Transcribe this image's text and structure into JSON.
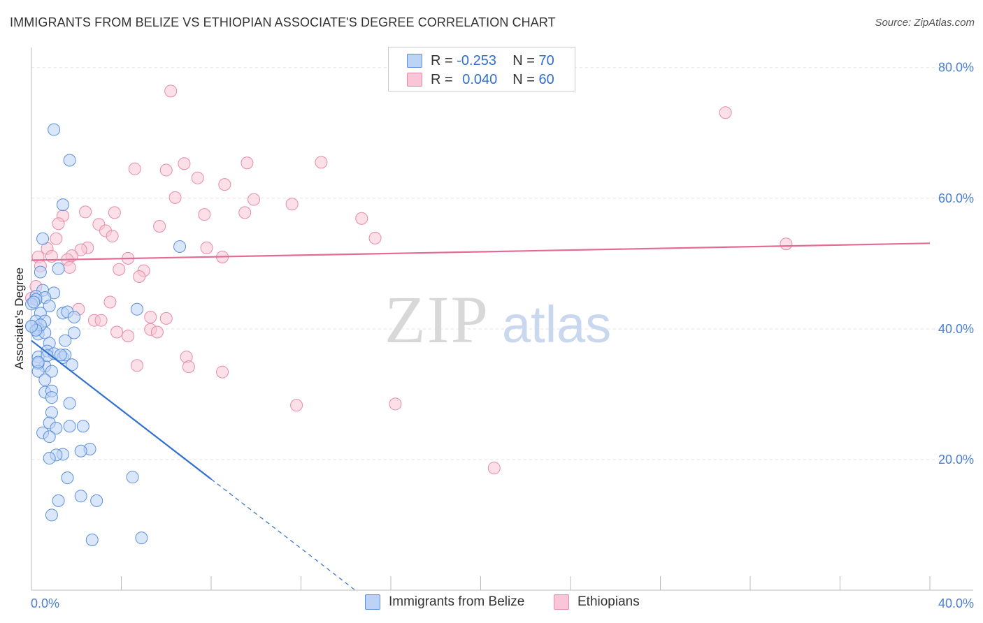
{
  "title": "IMMIGRANTS FROM BELIZE VS ETHIOPIAN ASSOCIATE'S DEGREE CORRELATION CHART",
  "source": "Source: ZipAtlas.com",
  "watermark": {
    "zip": "ZIP",
    "atlas": "atlas"
  },
  "colors": {
    "belize_fill": "#bcd3f5",
    "belize_stroke": "#5b8fdc",
    "belize_line": "#2f6fcf",
    "ethiopian_fill": "#f8c6d6",
    "ethiopian_stroke": "#e88aab",
    "ethiopian_line": "#e36b95",
    "grid": "#e3e3e3",
    "tick_text": "#4a7fd4"
  },
  "legend": {
    "belize": {
      "r_label": "R = ",
      "r_value": "-0.253",
      "n_label": "N = ",
      "n_value": "70"
    },
    "ethiopian": {
      "r_label": "R = ",
      "r_value": "0.040",
      "n_label": "N = ",
      "n_value": "60"
    }
  },
  "chart_data": {
    "type": "scatter",
    "title": "IMMIGRANTS FROM BELIZE VS ETHIOPIAN ASSOCIATE'S DEGREE CORRELATION CHART",
    "xlabel": "",
    "ylabel": "Associate's Degree",
    "xlim": [
      0,
      40
    ],
    "ylim": [
      0,
      82
    ],
    "x_tick_labels": [
      "0.0%",
      "40.0%"
    ],
    "y_ticks": [
      20,
      40,
      60,
      80
    ],
    "y_tick_labels": [
      "20.0%",
      "40.0%",
      "60.0%",
      "80.0%"
    ],
    "series": [
      {
        "name": "Immigrants from Belize",
        "r": -0.253,
        "n": 70,
        "trend": {
          "x0": 0,
          "y0": 38.2,
          "x1": 8.0,
          "y1": 17.0,
          "dashed_to_x": 14.5
        },
        "points": [
          [
            1.0,
            70.5
          ],
          [
            1.7,
            65.8
          ],
          [
            1.4,
            59.0
          ],
          [
            0.5,
            53.8
          ],
          [
            6.6,
            52.6
          ],
          [
            1.2,
            49.2
          ],
          [
            0.4,
            48.7
          ],
          [
            0.5,
            45.9
          ],
          [
            1.0,
            45.5
          ],
          [
            0.2,
            45.0
          ],
          [
            0.6,
            44.8
          ],
          [
            0.2,
            44.5
          ],
          [
            0.0,
            43.8
          ],
          [
            0.8,
            43.5
          ],
          [
            0.4,
            42.4
          ],
          [
            1.4,
            42.4
          ],
          [
            1.6,
            42.6
          ],
          [
            4.7,
            43.0
          ],
          [
            1.9,
            41.8
          ],
          [
            0.2,
            41.2
          ],
          [
            0.6,
            41.2
          ],
          [
            0.0,
            40.4
          ],
          [
            0.3,
            40.0
          ],
          [
            1.9,
            39.4
          ],
          [
            0.3,
            39.2
          ],
          [
            0.6,
            39.4
          ],
          [
            1.5,
            38.2
          ],
          [
            0.8,
            37.8
          ],
          [
            0.7,
            36.6
          ],
          [
            1.0,
            36.2
          ],
          [
            1.4,
            35.6
          ],
          [
            1.5,
            36.0
          ],
          [
            0.3,
            35.7
          ],
          [
            1.8,
            34.5
          ],
          [
            0.6,
            34.3
          ],
          [
            0.3,
            34.7
          ],
          [
            0.3,
            33.5
          ],
          [
            0.9,
            33.5
          ],
          [
            0.6,
            32.2
          ],
          [
            0.6,
            30.3
          ],
          [
            0.9,
            30.5
          ],
          [
            0.9,
            29.5
          ],
          [
            1.7,
            28.6
          ],
          [
            0.9,
            27.2
          ],
          [
            0.8,
            25.6
          ],
          [
            1.1,
            24.8
          ],
          [
            1.7,
            25.1
          ],
          [
            2.3,
            25.1
          ],
          [
            0.5,
            24.1
          ],
          [
            0.8,
            23.5
          ],
          [
            2.6,
            21.6
          ],
          [
            1.4,
            20.8
          ],
          [
            2.2,
            21.3
          ],
          [
            1.1,
            20.7
          ],
          [
            0.8,
            20.2
          ],
          [
            1.6,
            17.2
          ],
          [
            4.5,
            17.3
          ],
          [
            1.2,
            13.7
          ],
          [
            2.2,
            14.4
          ],
          [
            2.9,
            13.7
          ],
          [
            0.9,
            11.5
          ],
          [
            2.7,
            7.7
          ],
          [
            4.9,
            8.0
          ],
          [
            0.1,
            44.1
          ],
          [
            0.4,
            40.6
          ],
          [
            0.2,
            39.8
          ],
          [
            1.3,
            36.0
          ],
          [
            0.7,
            35.9
          ],
          [
            0.3,
            34.9
          ],
          [
            0.0,
            40.4
          ]
        ]
      },
      {
        "name": "Ethiopians",
        "r": 0.04,
        "n": 60,
        "trend": {
          "x0": 0,
          "y0": 50.5,
          "x1": 40,
          "y1": 53.1
        },
        "points": [
          [
            6.2,
            76.4
          ],
          [
            30.9,
            73.1
          ],
          [
            4.6,
            64.5
          ],
          [
            6.0,
            64.3
          ],
          [
            6.8,
            65.3
          ],
          [
            9.6,
            65.4
          ],
          [
            12.9,
            65.5
          ],
          [
            7.4,
            63.1
          ],
          [
            8.6,
            62.1
          ],
          [
            6.4,
            60.1
          ],
          [
            9.9,
            59.8
          ],
          [
            11.6,
            59.1
          ],
          [
            2.4,
            57.9
          ],
          [
            3.7,
            57.8
          ],
          [
            7.7,
            57.5
          ],
          [
            9.5,
            57.8
          ],
          [
            14.7,
            56.9
          ],
          [
            1.4,
            57.3
          ],
          [
            1.2,
            56.1
          ],
          [
            3.0,
            56.0
          ],
          [
            5.7,
            55.7
          ],
          [
            3.3,
            55.0
          ],
          [
            3.6,
            54.2
          ],
          [
            1.1,
            53.8
          ],
          [
            15.3,
            53.9
          ],
          [
            33.6,
            53.0
          ],
          [
            2.5,
            52.4
          ],
          [
            7.8,
            52.4
          ],
          [
            2.2,
            52.1
          ],
          [
            0.7,
            52.3
          ],
          [
            0.9,
            51.1
          ],
          [
            1.8,
            51.2
          ],
          [
            0.3,
            51.0
          ],
          [
            4.3,
            50.8
          ],
          [
            8.5,
            51.0
          ],
          [
            1.6,
            50.6
          ],
          [
            1.7,
            49.4
          ],
          [
            3.9,
            49.1
          ],
          [
            5.0,
            48.9
          ],
          [
            4.8,
            48.0
          ],
          [
            0.4,
            49.6
          ],
          [
            0.2,
            46.5
          ],
          [
            3.5,
            44.1
          ],
          [
            2.1,
            43.0
          ],
          [
            5.3,
            41.8
          ],
          [
            6.0,
            41.6
          ],
          [
            2.8,
            41.3
          ],
          [
            3.1,
            41.3
          ],
          [
            3.8,
            39.5
          ],
          [
            5.3,
            39.9
          ],
          [
            5.6,
            39.5
          ],
          [
            4.3,
            38.9
          ],
          [
            6.9,
            35.7
          ],
          [
            7.0,
            34.2
          ],
          [
            4.7,
            34.4
          ],
          [
            8.5,
            33.4
          ],
          [
            11.8,
            28.3
          ],
          [
            16.2,
            28.5
          ],
          [
            20.6,
            18.7
          ],
          [
            0.0,
            44.7
          ]
        ]
      }
    ]
  },
  "bottom_legend": {
    "belize": "Immigrants from Belize",
    "ethiopian": "Ethiopians"
  }
}
